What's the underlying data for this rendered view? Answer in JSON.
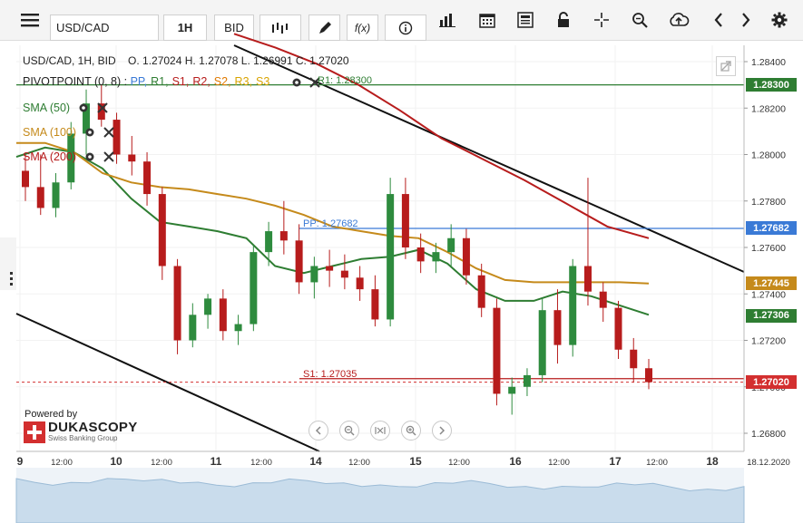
{
  "toolbar": {
    "symbol": "USD/CAD",
    "timeframe": "1H",
    "price_type": "BID",
    "fx_label": "f(x)"
  },
  "info": {
    "line": "USD/CAD, 1H, BID    O. 1.27024 H. 1.27078 L. 1.26991 C. 1.27020",
    "pivot_label": "PIVOTPOINT (0, 8)",
    "pivot_items": [
      {
        "label": "PP,",
        "color": "#3a7ad6"
      },
      {
        "label": "R1,",
        "color": "#2e7d32"
      },
      {
        "label": "S1,",
        "color": "#b71c1c"
      },
      {
        "label": "R2,",
        "color": "#b71c1c"
      },
      {
        "label": "S2,",
        "color": "#e07a00"
      },
      {
        "label": "R3,",
        "color": "#d9a400"
      },
      {
        "label": "S3",
        "color": "#d9a400"
      }
    ],
    "r1_value": "R1: 1.28300",
    "sma": [
      {
        "label": "SMA (50)",
        "color": "#2e7d32"
      },
      {
        "label": "SMA (100)",
        "color": "#c58a1b"
      },
      {
        "label": "SMA (200)",
        "color": "#b71c1c"
      }
    ]
  },
  "lines": {
    "pp_label": "PP: 1.27682",
    "s1_label": "S1: 1.27035"
  },
  "price_labels": [
    {
      "text": "1.28300",
      "color": "#2e7d32"
    },
    {
      "text": "1.27682",
      "color": "#3a7ad6"
    },
    {
      "text": "1.27445",
      "color": "#c58a1b"
    },
    {
      "text": "1.27306",
      "color": "#2e7d32"
    },
    {
      "text": "1.27020",
      "color": "#d32f2f"
    }
  ],
  "branding": {
    "powered_by": "Powered by",
    "name": "DUKASCOPY",
    "tagline": "Swiss Banking Group"
  },
  "chart_data": {
    "type": "candlestick",
    "symbol": "USD/CAD",
    "interval": "1H",
    "ohlc_last": {
      "open": 1.27024,
      "high": 1.27078,
      "low": 1.26991,
      "close": 1.2702
    },
    "ylim": [
      1.2665,
      1.2845
    ],
    "y_ticks": [
      "1.28400",
      "1.28200",
      "1.28000",
      "1.27800",
      "1.27600",
      "1.27400",
      "1.27200",
      "1.27000",
      "1.26800"
    ],
    "x_ticks": [
      "9",
      "12:00",
      "10",
      "12:00",
      "11",
      "12:00",
      "14",
      "12:00",
      "15",
      "12:00",
      "16",
      "12:00",
      "17",
      "12:00",
      "18",
      "18.12.2020"
    ],
    "levels": {
      "R1": 1.283,
      "PP": 1.27682,
      "S1": 1.27035
    },
    "series": [
      {
        "name": "SMA (50)",
        "color": "#2e7d32",
        "values": [
          1.2799,
          1.2803,
          1.2801,
          1.2794,
          1.2781,
          1.2771,
          1.2769,
          1.2767,
          1.2764,
          1.2752,
          1.2749,
          1.2752,
          1.2755,
          1.2756,
          1.2759,
          1.2753,
          1.2742,
          1.2737,
          1.2737,
          1.2741,
          1.2739,
          1.2735,
          1.2731
        ]
      },
      {
        "name": "SMA (100)",
        "color": "#c58a1b",
        "values": [
          1.2805,
          1.2805,
          1.2801,
          1.2792,
          1.2788,
          1.2786,
          1.2785,
          1.2783,
          1.2781,
          1.2778,
          1.2774,
          1.2769,
          1.2767,
          1.2765,
          1.2764,
          1.2758,
          1.2751,
          1.2746,
          1.2745,
          1.2745,
          1.2745,
          1.2745,
          1.27445
        ]
      },
      {
        "name": "SMA (200)",
        "color": "#b71c1c",
        "values": [
          1.2852,
          1.2846,
          1.2839,
          1.283,
          1.2819,
          1.2807,
          1.2798,
          1.2789,
          1.2779,
          1.2769,
          1.2764
        ]
      }
    ],
    "candles": [
      [
        1.2793,
        1.28,
        1.278,
        1.2786
      ],
      [
        1.2786,
        1.28,
        1.2774,
        1.2777
      ],
      [
        1.2777,
        1.2792,
        1.2773,
        1.2788
      ],
      [
        1.2788,
        1.2814,
        1.2785,
        1.2809
      ],
      [
        1.2809,
        1.2828,
        1.28,
        1.2822
      ],
      [
        1.2822,
        1.283,
        1.2812,
        1.2815
      ],
      [
        1.2815,
        1.2818,
        1.2796,
        1.28
      ],
      [
        1.28,
        1.2808,
        1.2791,
        1.2797
      ],
      [
        1.2797,
        1.2801,
        1.2778,
        1.2783
      ],
      [
        1.2783,
        1.2786,
        1.2746,
        1.2752
      ],
      [
        1.2752,
        1.2755,
        1.2714,
        1.272
      ],
      [
        1.272,
        1.2736,
        1.2717,
        1.2731
      ],
      [
        1.2731,
        1.274,
        1.2725,
        1.2738
      ],
      [
        1.2738,
        1.2742,
        1.272,
        1.2724
      ],
      [
        1.2724,
        1.2731,
        1.2718,
        1.2727
      ],
      [
        1.2727,
        1.2761,
        1.2724,
        1.2758
      ],
      [
        1.2758,
        1.2771,
        1.2752,
        1.2767
      ],
      [
        1.2767,
        1.278,
        1.2757,
        1.2763
      ],
      [
        1.2763,
        1.277,
        1.274,
        1.2745
      ],
      [
        1.2745,
        1.2756,
        1.2738,
        1.2752
      ],
      [
        1.2752,
        1.2759,
        1.2743,
        1.275
      ],
      [
        1.275,
        1.2757,
        1.2742,
        1.2747
      ],
      [
        1.2747,
        1.2752,
        1.2737,
        1.2742
      ],
      [
        1.2742,
        1.2748,
        1.2726,
        1.2729
      ],
      [
        1.2729,
        1.279,
        1.2726,
        1.2783
      ],
      [
        1.2783,
        1.279,
        1.2755,
        1.276
      ],
      [
        1.276,
        1.2766,
        1.2749,
        1.2754
      ],
      [
        1.2754,
        1.2762,
        1.2749,
        1.2758
      ],
      [
        1.2758,
        1.277,
        1.2752,
        1.2764
      ],
      [
        1.2764,
        1.2768,
        1.2744,
        1.2748
      ],
      [
        1.2748,
        1.2753,
        1.273,
        1.2734
      ],
      [
        1.2734,
        1.2738,
        1.2692,
        1.2697
      ],
      [
        1.2697,
        1.2704,
        1.2688,
        1.27
      ],
      [
        1.27,
        1.2708,
        1.2696,
        1.2705
      ],
      [
        1.2705,
        1.2738,
        1.2702,
        1.2733
      ],
      [
        1.2733,
        1.2742,
        1.271,
        1.2718
      ],
      [
        1.2718,
        1.2755,
        1.2713,
        1.2752
      ],
      [
        1.2752,
        1.279,
        1.2735,
        1.2741
      ],
      [
        1.2741,
        1.2745,
        1.2728,
        1.2734
      ],
      [
        1.2734,
        1.2737,
        1.2712,
        1.2716
      ],
      [
        1.2716,
        1.2721,
        1.2702,
        1.2708
      ],
      [
        1.2708,
        1.2712,
        1.2699,
        1.2702
      ]
    ]
  }
}
